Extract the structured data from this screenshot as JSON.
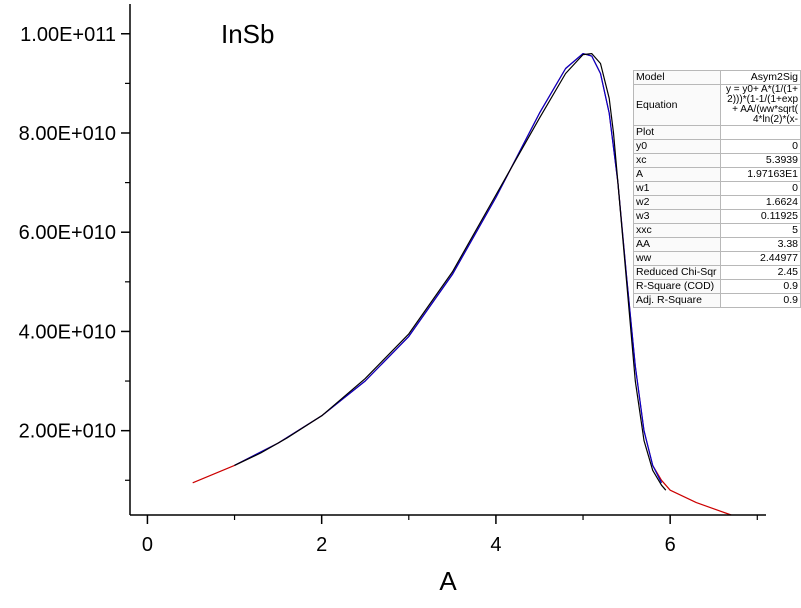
{
  "chart_data": {
    "type": "line",
    "title": "InSb",
    "xlabel": "A",
    "ylabel": "",
    "xlim": [
      -0.2,
      7.1
    ],
    "ylim": [
      3000000000,
      106000000000
    ],
    "x_ticks": [
      0,
      2,
      4,
      6
    ],
    "x_tick_labels": [
      "0",
      "2",
      "4",
      "6"
    ],
    "y_ticks": [
      20000000000,
      40000000000,
      60000000000,
      80000000000,
      100000000000
    ],
    "y_tick_labels": [
      "2.00E+010",
      "4.00E+010",
      "6.00E+010",
      "8.00E+010",
      "1.00E+011"
    ],
    "grid": false,
    "legend": "none",
    "series": [
      {
        "color": "#cc0000",
        "x": [
          0.52,
          1.0,
          1.5,
          2.0,
          2.5,
          3.0,
          3.5,
          4.0,
          4.5,
          4.8,
          5.0,
          5.1,
          5.2,
          5.3,
          5.4,
          5.5,
          5.6,
          5.7,
          5.8,
          5.9,
          6.0,
          6.3,
          6.7
        ],
        "y": [
          9500000000,
          13000000000,
          17500000000,
          23000000000,
          30000000000,
          39000000000,
          51500000000,
          67000000000,
          84000000000,
          93000000000,
          96000000000,
          95500000000,
          92000000000,
          84000000000,
          70000000000,
          51000000000,
          33000000000,
          20000000000,
          13000000000,
          10000000000,
          8000000000,
          5500000000,
          3000000000
        ]
      },
      {
        "color": "#0000cc",
        "x": [
          1.0,
          1.5,
          2.0,
          2.5,
          3.0,
          3.5,
          4.0,
          4.5,
          4.8,
          5.0,
          5.1,
          5.2,
          5.3,
          5.4,
          5.5,
          5.6,
          5.7,
          5.8,
          5.9
        ],
        "y": [
          13000000000,
          17500000000,
          23000000000,
          30000000000,
          39000000000,
          51500000000,
          67000000000,
          84000000000,
          93000000000,
          96000000000,
          95500000000,
          92000000000,
          84000000000,
          70000000000,
          51000000000,
          33000000000,
          20000000000,
          13000000000,
          9500000000
        ]
      },
      {
        "color": "#000000",
        "x": [
          1.0,
          1.3,
          1.6,
          2.0,
          2.5,
          3.0,
          3.5,
          4.0,
          4.5,
          4.8,
          5.0,
          5.1,
          5.2,
          5.3,
          5.35,
          5.4,
          5.5,
          5.6,
          5.7,
          5.8,
          5.9,
          5.95
        ],
        "y": [
          13000000000,
          15500000000,
          18500000000,
          23000000000,
          30500000000,
          39500000000,
          52000000000,
          67500000000,
          83000000000,
          92000000000,
          95800000000,
          96000000000,
          94000000000,
          87000000000,
          80000000000,
          70000000000,
          50000000000,
          30000000000,
          18000000000,
          12000000000,
          9000000000,
          8000000000
        ]
      }
    ]
  },
  "fit_table": {
    "rows": [
      {
        "key": "Model",
        "value": "Asym2Sig"
      },
      {
        "key": "Equation",
        "value": "y = y0+ A*(1/(1+\n2)))*(1-1/(1+exp\n+ AA/(ww*sqrt(\n4*ln(2)*(x-",
        "eq": true
      },
      {
        "key": "Plot",
        "value": ""
      },
      {
        "key": "y0",
        "value": "0"
      },
      {
        "key": "xc",
        "value": "5.3939"
      },
      {
        "key": "A",
        "value": "1.97163E1"
      },
      {
        "key": "w1",
        "value": "0"
      },
      {
        "key": "w2",
        "value": "1.6624"
      },
      {
        "key": "w3",
        "value": "0.11925"
      },
      {
        "key": "xxc",
        "value": "5"
      },
      {
        "key": "AA",
        "value": "3.38"
      },
      {
        "key": "ww",
        "value": "2.44977"
      },
      {
        "key": "Reduced Chi-Sqr",
        "value": "2.45"
      },
      {
        "key": "R-Square (COD)",
        "value": "0.9"
      },
      {
        "key": "Adj. R-Square",
        "value": "0.9"
      }
    ]
  }
}
